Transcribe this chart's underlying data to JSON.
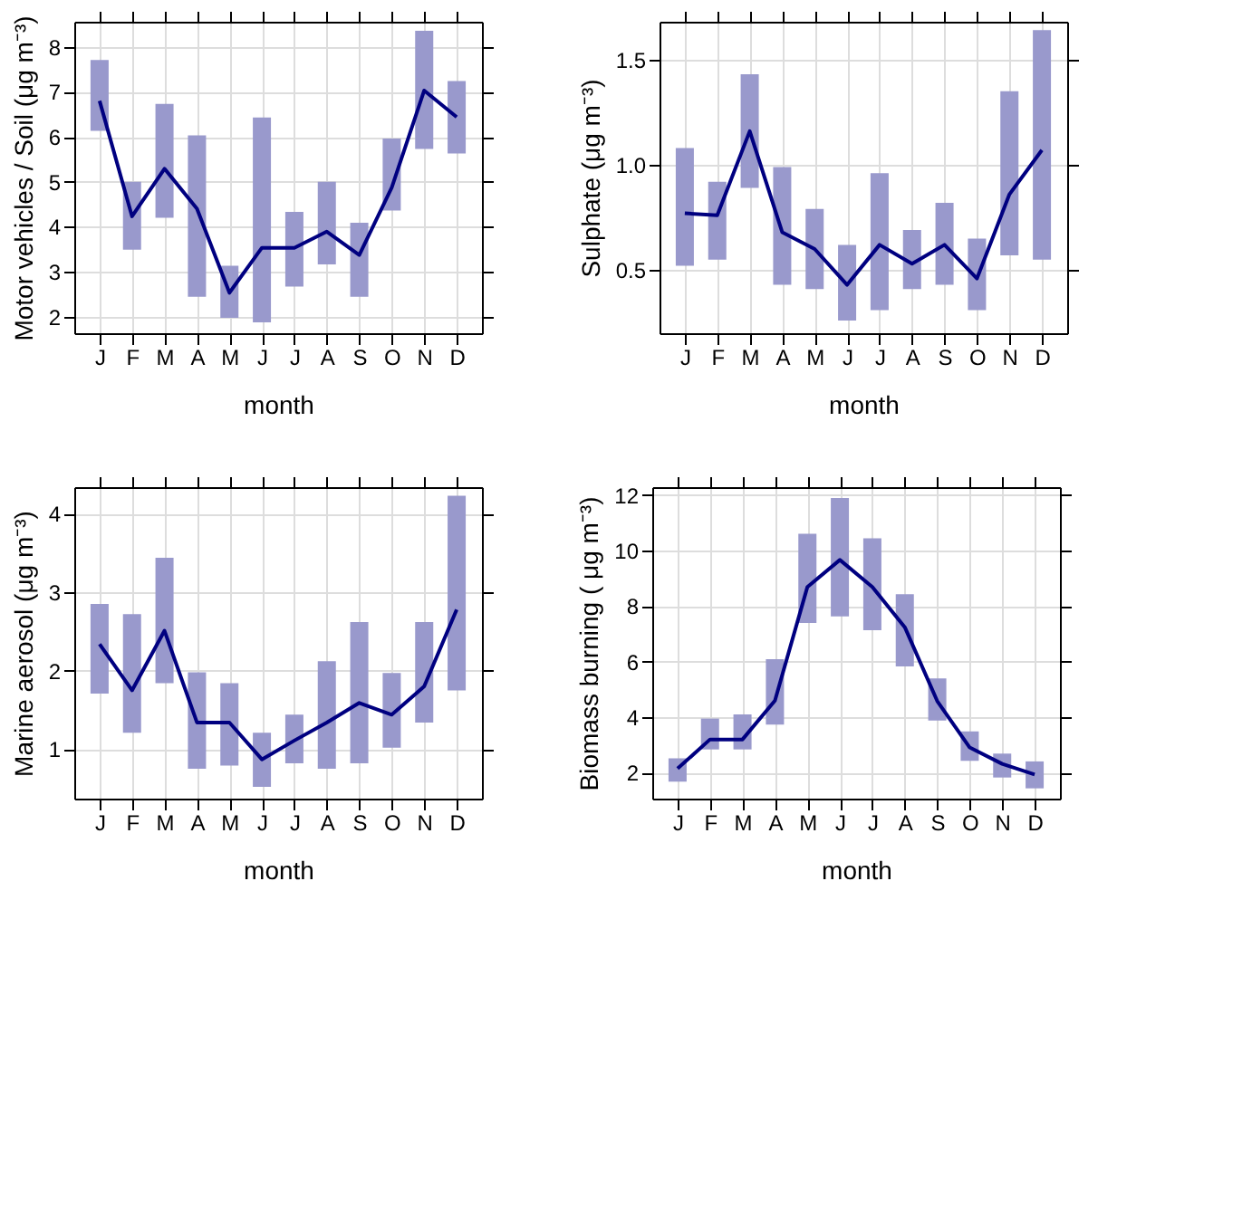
{
  "chart_data": [
    {
      "type": "bar",
      "xlabel": "month",
      "ylabel": "Motor vehicles / Soil (μg m⁻³)",
      "categories": [
        "J",
        "F",
        "M",
        "A",
        "M",
        "J",
        "J",
        "A",
        "S",
        "O",
        "N",
        "D"
      ],
      "ylim": [
        1.63,
        8.56
      ],
      "yticks": [
        2,
        3,
        4,
        5,
        6,
        7,
        8
      ],
      "grid": true,
      "series": [
        {
          "color": "#9999cc",
          "base": [
            6.13,
            3.49,
            4.2,
            2.44,
            1.97,
            1.87,
            2.67,
            3.16,
            2.44,
            4.36,
            5.73,
            5.63
          ],
          "values": [
            1.58,
            1.51,
            2.53,
            3.59,
            1.16,
            4.56,
            1.66,
            1.84,
            1.65,
            1.6,
            2.63,
            1.61
          ]
        },
        {
          "type": "line",
          "color": "#000080",
          "values": [
            6.8,
            4.23,
            5.29,
            4.4,
            2.53,
            3.53,
            3.53,
            3.89,
            3.37,
            4.87,
            7.03,
            6.44
          ]
        }
      ]
    },
    {
      "type": "bar",
      "xlabel": "month",
      "ylabel": "Sulphate (μg m⁻³)",
      "categories": [
        "J",
        "F",
        "M",
        "A",
        "M",
        "J",
        "J",
        "A",
        "S",
        "O",
        "N",
        "D"
      ],
      "ylim": [
        0.2,
        1.68
      ],
      "yticks": [
        0.5,
        {
          "value": 1,
          "label": "1.0"
        },
        1.5
      ],
      "grid": true,
      "series": [
        {
          "color": "#9999cc",
          "base": [
            0.52,
            0.55,
            0.89,
            0.43,
            0.41,
            0.26,
            0.31,
            0.41,
            0.43,
            0.31,
            0.57,
            0.55
          ],
          "values": [
            0.56,
            0.37,
            0.54,
            0.56,
            0.38,
            0.36,
            0.65,
            0.28,
            0.39,
            0.34,
            0.78,
            1.09
          ]
        },
        {
          "type": "line",
          "color": "#000080",
          "values": [
            0.77,
            0.76,
            1.16,
            0.68,
            0.6,
            0.43,
            0.62,
            0.53,
            0.62,
            0.46,
            0.86,
            1.07
          ]
        }
      ]
    },
    {
      "type": "bar",
      "xlabel": "month",
      "ylabel": "Marine aerosol (μg m⁻³)",
      "categories": [
        "J",
        "F",
        "M",
        "A",
        "M",
        "J",
        "J",
        "A",
        "S",
        "O",
        "N",
        "D"
      ],
      "ylim": [
        0.37,
        4.34
      ],
      "yticks": [
        1,
        2,
        3,
        4
      ],
      "grid": true,
      "series": [
        {
          "color": "#9999cc",
          "base": [
            1.71,
            1.21,
            1.84,
            0.75,
            0.79,
            0.52,
            0.82,
            0.75,
            0.82,
            1.02,
            1.34,
            1.75
          ],
          "values": [
            1.14,
            1.51,
            1.6,
            1.23,
            1.05,
            0.69,
            0.62,
            1.37,
            1.8,
            0.95,
            1.28,
            2.48
          ]
        },
        {
          "type": "line",
          "color": "#000080",
          "values": [
            2.34,
            1.75,
            2.51,
            1.34,
            1.34,
            0.87,
            1.11,
            1.34,
            1.59,
            1.44,
            1.8,
            2.78
          ]
        }
      ]
    },
    {
      "type": "bar",
      "xlabel": "month",
      "ylabel": "Biomass burning ( μg m⁻³)",
      "categories": [
        "J",
        "F",
        "M",
        "A",
        "M",
        "J",
        "J",
        "A",
        "S",
        "O",
        "N",
        "D"
      ],
      "ylim": [
        1.07,
        12.28
      ],
      "yticks": [
        2,
        4,
        6,
        8,
        10,
        12
      ],
      "grid": true,
      "series": [
        {
          "color": "#9999cc",
          "base": [
            1.68,
            2.84,
            2.84,
            3.73,
            7.39,
            7.63,
            7.13,
            5.83,
            3.88,
            2.43,
            1.83,
            1.44
          ],
          "values": [
            0.84,
            1.11,
            1.26,
            2.36,
            3.21,
            4.26,
            3.31,
            2.6,
            1.52,
            1.06,
            0.86,
            0.97
          ]
        },
        {
          "type": "line",
          "color": "#000080",
          "values": [
            2.15,
            3.2,
            3.2,
            4.6,
            8.69,
            9.66,
            8.69,
            7.24,
            4.58,
            2.91,
            2.32,
            1.94
          ]
        }
      ]
    }
  ]
}
